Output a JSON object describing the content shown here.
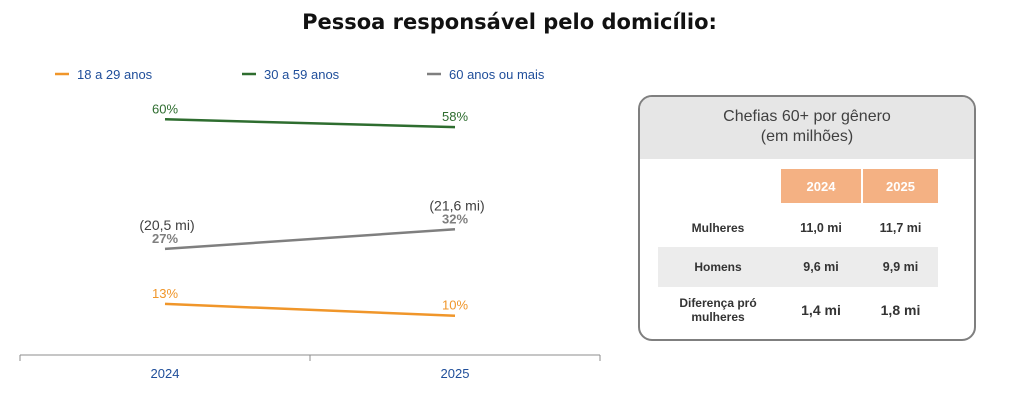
{
  "page_title": "Pessoa responsável pelo domicílio:",
  "chart_data": {
    "type": "line",
    "categories": [
      "2024",
      "2025"
    ],
    "ylim": [
      0,
      70
    ],
    "grid": false,
    "legend_position": "top",
    "series": [
      {
        "name": "18 a 29 anos",
        "color": "#f0962a",
        "values": [
          13,
          10
        ],
        "labels": [
          "13%",
          "10%"
        ],
        "extra_labels": [
          "",
          ""
        ]
      },
      {
        "name": "30 a 59 anos",
        "color": "#2e6d2f",
        "values": [
          60,
          58
        ],
        "labels": [
          "60%",
          "58%"
        ],
        "extra_labels": [
          "",
          ""
        ]
      },
      {
        "name": "60 anos ou mais",
        "color": "#7f7f7f",
        "values": [
          27,
          32
        ],
        "labels": [
          "27%",
          "32%"
        ],
        "extra_labels": [
          "(20,5 mi)",
          "(21,6 mi)"
        ]
      }
    ]
  },
  "table": {
    "title_line1": "Chefias 60+ por gênero",
    "title_line2": "(em milhões)",
    "columns": [
      "2024",
      "2025"
    ],
    "rows": [
      {
        "label": "Mulheres",
        "values": [
          "11,0 mi",
          "11,7 mi"
        ]
      },
      {
        "label": "Homens",
        "values": [
          "9,6 mi",
          "9,9 mi"
        ]
      },
      {
        "label": "Diferença pró mulheres",
        "values": [
          "1,4 mi",
          "1,8 mi"
        ]
      }
    ]
  }
}
